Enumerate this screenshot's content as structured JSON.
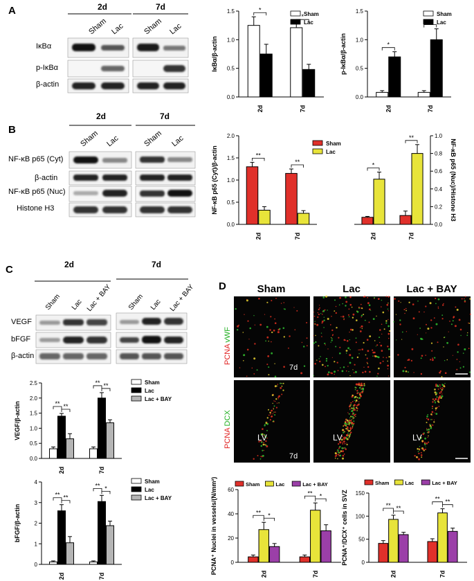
{
  "panel_labels": {
    "A": "A",
    "B": "B",
    "C": "C",
    "D": "D"
  },
  "blots": {
    "A": {
      "time_labels": [
        "2d",
        "7d"
      ],
      "lane_labels": [
        "Sham",
        "Lac",
        "Sham",
        "Lac"
      ],
      "row_labels": [
        "IκBα",
        "p-IκBα",
        "β-actin"
      ]
    },
    "B": {
      "time_labels": [
        "2d",
        "7d"
      ],
      "lane_labels": [
        "Sham",
        "Lac",
        "Sham",
        "Lac"
      ],
      "row_labels": [
        "NF-κB p65 (Cyt)",
        "β-actin",
        "NF-κB p65 (Nuc)",
        "Histone H3"
      ]
    },
    "C": {
      "time_labels": [
        "2d",
        "7d"
      ],
      "lane_labels": [
        "Sham",
        "Lac",
        "Lac + BAY",
        "Sham",
        "Lac",
        "Lac + BAY"
      ],
      "row_labels": [
        "VEGF",
        "bFGF",
        "β-actin"
      ]
    }
  },
  "micrographs": {
    "column_titles": [
      "Sham",
      "Lac",
      "Lac + BAY"
    ],
    "row1_label": {
      "a": "PCNA",
      "b": "vWF"
    },
    "row2_label": {
      "a": "PCNA",
      "b": "DCX"
    },
    "time_tag": "7d",
    "lv_label": "LV"
  },
  "colors": {
    "sham_white": "#ffffff",
    "lac_black": "#000000",
    "bay_gray": "#b5b5b5",
    "sham_red": "#e0302a",
    "lac_yellow": "#e8e43a",
    "bay_purple": "#9b3fa8"
  },
  "chart_data": [
    {
      "id": "A-ikba",
      "type": "bar",
      "categories": [
        "2d",
        "7d"
      ],
      "series": [
        {
          "name": "Sham",
          "values": [
            1.25,
            1.21
          ],
          "errors": [
            0.15,
            0.07
          ]
        },
        {
          "name": "Lac",
          "values": [
            0.75,
            0.48
          ],
          "errors": [
            0.17,
            0.09
          ]
        }
      ],
      "ylabel": "IκBα/β-actin",
      "ylim": [
        0,
        1.5
      ],
      "yticks": [
        "0.0",
        "0.5",
        "1.0",
        "1.5"
      ],
      "significance": [
        "*",
        "*"
      ],
      "legend_position": "top-right"
    },
    {
      "id": "A-pikba",
      "type": "bar",
      "categories": [
        "2d",
        "7d"
      ],
      "series": [
        {
          "name": "Sham",
          "values": [
            0.08,
            0.08
          ],
          "errors": [
            0.03,
            0.03
          ]
        },
        {
          "name": "Lac",
          "values": [
            0.7,
            1.0
          ],
          "errors": [
            0.09,
            0.19
          ]
        }
      ],
      "ylabel": "p-IκBα/β-actin",
      "ylim": [
        0,
        1.5
      ],
      "yticks": [
        "0.0",
        "0.5",
        "1.0",
        "1.5"
      ],
      "significance": [
        "*",
        "*"
      ],
      "legend_position": "top-right"
    },
    {
      "id": "B-cyt",
      "type": "bar",
      "categories": [
        "2d",
        "7d"
      ],
      "series": [
        {
          "name": "Sham",
          "values": [
            1.3,
            1.15
          ],
          "errors": [
            0.1,
            0.1
          ]
        },
        {
          "name": "Lac",
          "values": [
            0.32,
            0.25
          ],
          "errors": [
            0.08,
            0.06
          ]
        }
      ],
      "ylabel": "NF-κB p65 (Cyt)/β-actin",
      "ylim": [
        0,
        2.0
      ],
      "yticks": [
        "0.0",
        "0.5",
        "1.0",
        "1.5",
        "2.0"
      ],
      "significance": [
        "**",
        "**"
      ],
      "legend_position": "top-right"
    },
    {
      "id": "B-nuc",
      "type": "bar",
      "categories": [
        "2d",
        "7d"
      ],
      "series": [
        {
          "name": "Sham",
          "values": [
            0.08,
            0.1
          ],
          "errors": [
            0.01,
            0.05
          ]
        },
        {
          "name": "Lac",
          "values": [
            0.51,
            0.8
          ],
          "errors": [
            0.08,
            0.1
          ]
        }
      ],
      "ylabel": "NF-κB p65 (Nuc)/Histone H3",
      "ylim": [
        0,
        1.0
      ],
      "yticks": [
        "0.0",
        "0.2",
        "0.4",
        "0.6",
        "0.8",
        "1.0"
      ],
      "yaxis_side": "right",
      "significance": [
        "*",
        "**"
      ]
    },
    {
      "id": "C-vegf",
      "type": "bar",
      "categories": [
        "2d",
        "7d"
      ],
      "series": [
        {
          "name": "Sham",
          "values": [
            0.32,
            0.32
          ],
          "errors": [
            0.06,
            0.06
          ]
        },
        {
          "name": "Lac",
          "values": [
            1.4,
            2.0
          ],
          "errors": [
            0.09,
            0.18
          ]
        },
        {
          "name": "Lac + BAY",
          "values": [
            0.65,
            1.18
          ],
          "errors": [
            0.17,
            0.1
          ]
        }
      ],
      "ylabel": "VEGF/β-actin",
      "ylim": [
        0,
        2.5
      ],
      "yticks": [
        "0.0",
        "0.5",
        "1.0",
        "1.5",
        "2.0",
        "2.5"
      ],
      "significance": [
        [
          "**",
          "**"
        ],
        [
          "**",
          "**"
        ]
      ],
      "legend_position": "top-right"
    },
    {
      "id": "C-bfgf",
      "type": "bar",
      "categories": [
        "2d",
        "7d"
      ],
      "series": [
        {
          "name": "Sham",
          "values": [
            0.12,
            0.12
          ],
          "errors": [
            0.05,
            0.05
          ]
        },
        {
          "name": "Lac",
          "values": [
            2.6,
            3.05
          ],
          "errors": [
            0.3,
            0.3
          ]
        },
        {
          "name": "Lac + BAY",
          "values": [
            1.05,
            1.88
          ],
          "errors": [
            0.3,
            0.22
          ]
        }
      ],
      "ylabel": "bFGF/β-actin",
      "ylim": [
        0,
        4
      ],
      "yticks": [
        "0",
        "1",
        "2",
        "3",
        "4"
      ],
      "significance": [
        [
          "**",
          "**"
        ],
        [
          "**",
          "*"
        ]
      ],
      "legend_position": "top-right"
    },
    {
      "id": "D-vessels",
      "type": "bar",
      "categories": [
        "2d",
        "7d"
      ],
      "series": [
        {
          "name": "Sham",
          "values": [
            4.5,
            4.5
          ],
          "errors": [
            1.5,
            1.5
          ]
        },
        {
          "name": "Lac",
          "values": [
            27,
            43
          ],
          "errors": [
            6,
            6
          ]
        },
        {
          "name": "Lac + BAY",
          "values": [
            13,
            26
          ],
          "errors": [
            2.5,
            5
          ]
        }
      ],
      "ylabel": "PCNA⁺ Nuclei in vessels/(N/mm²)",
      "ylim": [
        0,
        60
      ],
      "yticks": [
        "0",
        "20",
        "40",
        "60"
      ],
      "significance": [
        [
          "**",
          "*"
        ],
        [
          "**",
          "*"
        ]
      ],
      "legend_position": "top"
    },
    {
      "id": "D-svz",
      "type": "bar",
      "categories": [
        "2d",
        "7d"
      ],
      "series": [
        {
          "name": "Sham",
          "values": [
            41,
            45
          ],
          "errors": [
            6,
            6
          ]
        },
        {
          "name": "Lac",
          "values": [
            93,
            107
          ],
          "errors": [
            9,
            9
          ]
        },
        {
          "name": "Lac + BAY",
          "values": [
            60,
            67
          ],
          "errors": [
            5,
            7
          ]
        }
      ],
      "ylabel": "PCNA⁺/DCX⁺ cells in SVZ",
      "ylim": [
        0,
        150
      ],
      "yticks": [
        "0",
        "50",
        "100",
        "150"
      ],
      "significance": [
        [
          "**",
          "**"
        ],
        [
          "**",
          "**"
        ]
      ],
      "legend_position": "top"
    }
  ]
}
